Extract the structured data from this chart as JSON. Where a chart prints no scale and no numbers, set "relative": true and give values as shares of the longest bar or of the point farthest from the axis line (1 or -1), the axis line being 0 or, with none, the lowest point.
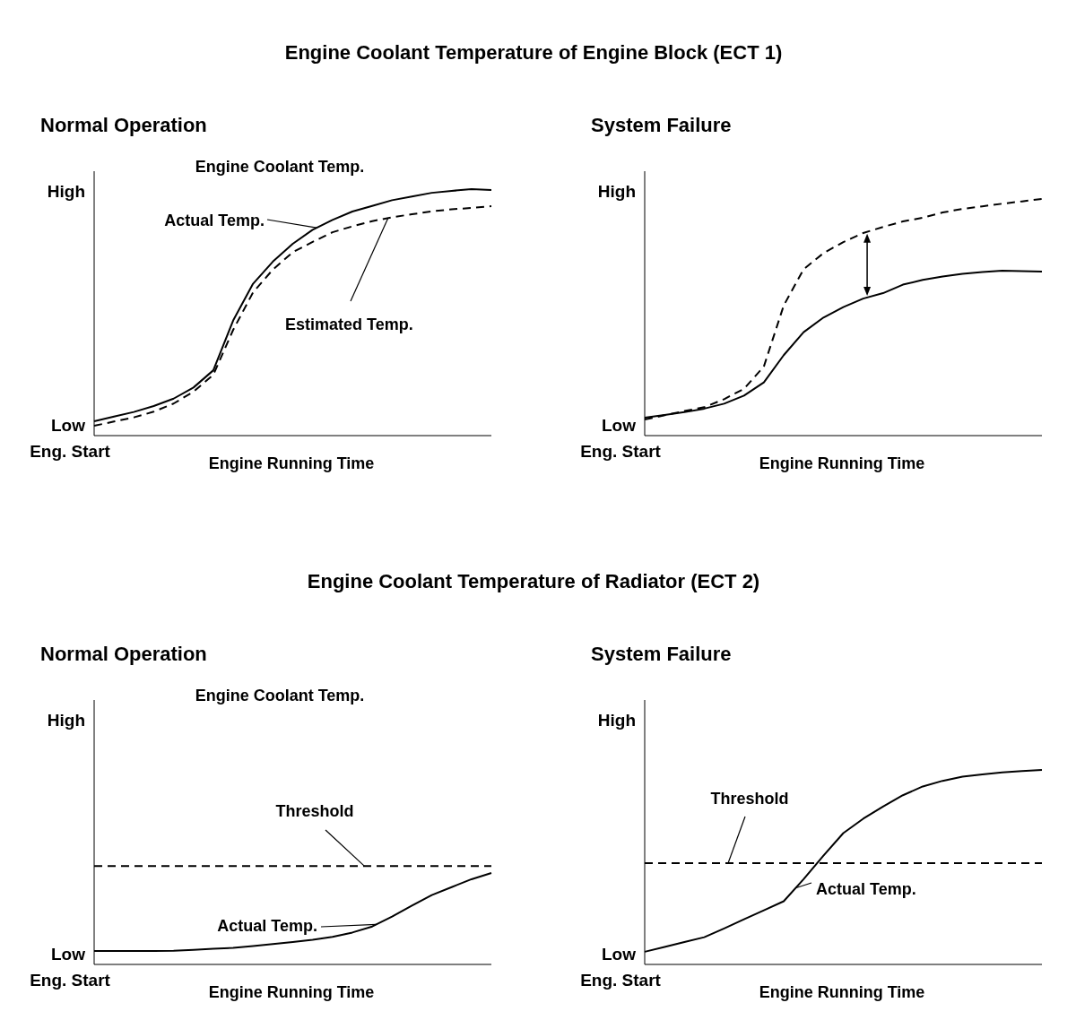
{
  "chart_data": [
    {
      "type": "line",
      "relative": true,
      "title": "Engine Coolant Temperature of Engine Block (ECT 1)",
      "subtitle": "Normal Operation",
      "xlabel": "Engine Running Time",
      "annotations": [
        "High",
        "Low",
        "Eng. Start",
        "Engine Coolant Temp."
      ],
      "categories": [
        null,
        null,
        null,
        null,
        null,
        null,
        null,
        null,
        null,
        null,
        null,
        null,
        null,
        null,
        null,
        null,
        null,
        null,
        null,
        null,
        null
      ],
      "series": [
        {
          "name": "Actual Temp.",
          "color": "#000000",
          "line_style": "solid",
          "values": [
            0.058,
            0.077,
            0.096,
            0.12,
            0.15,
            0.195,
            0.265,
            0.467,
            0.616,
            0.706,
            0.778,
            0.835,
            0.875,
            0.909,
            0.932,
            0.955,
            0.97,
            0.985,
            0.993,
            1,
            0.996
          ]
        },
        {
          "name": "Estimated Temp.",
          "color": "#000000",
          "line_style": "dashed",
          "values": [
            0.04,
            0.057,
            0.074,
            0.097,
            0.13,
            0.178,
            0.247,
            0.429,
            0.581,
            0.674,
            0.744,
            0.786,
            0.825,
            0.849,
            0.87,
            0.886,
            0.898,
            0.91,
            0.918,
            0.924,
            0.931
          ]
        }
      ]
    },
    {
      "type": "line",
      "relative": true,
      "subtitle": "System Failure",
      "xlabel": "Engine Running Time",
      "annotations": [
        "High",
        "Low",
        "Eng. Start"
      ],
      "categories": [
        null,
        null,
        null,
        null,
        null,
        null,
        null,
        null,
        null,
        null,
        null,
        null,
        null,
        null,
        null,
        null,
        null,
        null,
        null,
        null,
        null
      ],
      "series": [
        {
          "color": "#000000",
          "line_style": "solid",
          "values": [
            0.076,
            0.087,
            0.099,
            0.114,
            0.135,
            0.169,
            0.225,
            0.34,
            0.437,
            0.499,
            0.543,
            0.579,
            0.602,
            0.638,
            0.658,
            0.672,
            0.684,
            0.691,
            0.697,
            0.695,
            0.693
          ]
        },
        {
          "color": "#000000",
          "line_style": "dashed",
          "values": [
            0.068,
            0.086,
            0.104,
            0.12,
            0.154,
            0.198,
            0.292,
            0.55,
            0.703,
            0.771,
            0.818,
            0.856,
            0.882,
            0.905,
            0.921,
            0.943,
            0.958,
            0.969,
            0.98,
            0.99,
            1
          ]
        }
      ]
    },
    {
      "type": "line",
      "relative": true,
      "title": "Engine Coolant Temperature of Radiator (ECT 2)",
      "subtitle": "Normal Operation",
      "xlabel": "Engine Running Time",
      "annotations": [
        "High",
        "Low",
        "Eng. Start",
        "Engine Coolant Temp."
      ],
      "categories": [
        null,
        null,
        null,
        null,
        null,
        null,
        null,
        null,
        null,
        null,
        null,
        null,
        null,
        null,
        null,
        null,
        null,
        null,
        null,
        null,
        null
      ],
      "ref_lines": [
        {
          "axis": "y",
          "value": 1.077,
          "label": "Threshold",
          "color": "#000000",
          "line_style": "dashed"
        }
      ],
      "series": [
        {
          "name": "Actual Temp.",
          "color": "#000000",
          "line_style": "solid",
          "values": [
            0.146,
            0.146,
            0.146,
            0.146,
            0.149,
            0.16,
            0.171,
            0.182,
            0.2,
            0.222,
            0.245,
            0.269,
            0.301,
            0.349,
            0.415,
            0.523,
            0.644,
            0.759,
            0.846,
            0.932,
            1
          ]
        }
      ]
    },
    {
      "type": "line",
      "relative": true,
      "subtitle": "System Failure",
      "xlabel": "Engine Running Time",
      "annotations": [
        "High",
        "Low",
        "Eng. Start"
      ],
      "categories": [
        null,
        null,
        null,
        null,
        null,
        null,
        null,
        null,
        null,
        null,
        null,
        null,
        null,
        null,
        null,
        null,
        null,
        null,
        null,
        null,
        null
      ],
      "ref_lines": [
        {
          "axis": "y",
          "value": 0.521,
          "label": "Threshold",
          "color": "#000000",
          "line_style": "dashed"
        }
      ],
      "series": [
        {
          "name": "Actual Temp.",
          "color": "#000000",
          "line_style": "solid",
          "values": [
            0.065,
            0.09,
            0.115,
            0.14,
            0.185,
            0.232,
            0.278,
            0.325,
            0.438,
            0.559,
            0.675,
            0.749,
            0.812,
            0.87,
            0.915,
            0.944,
            0.965,
            0.977,
            0.987,
            0.994,
            1
          ]
        }
      ]
    }
  ]
}
